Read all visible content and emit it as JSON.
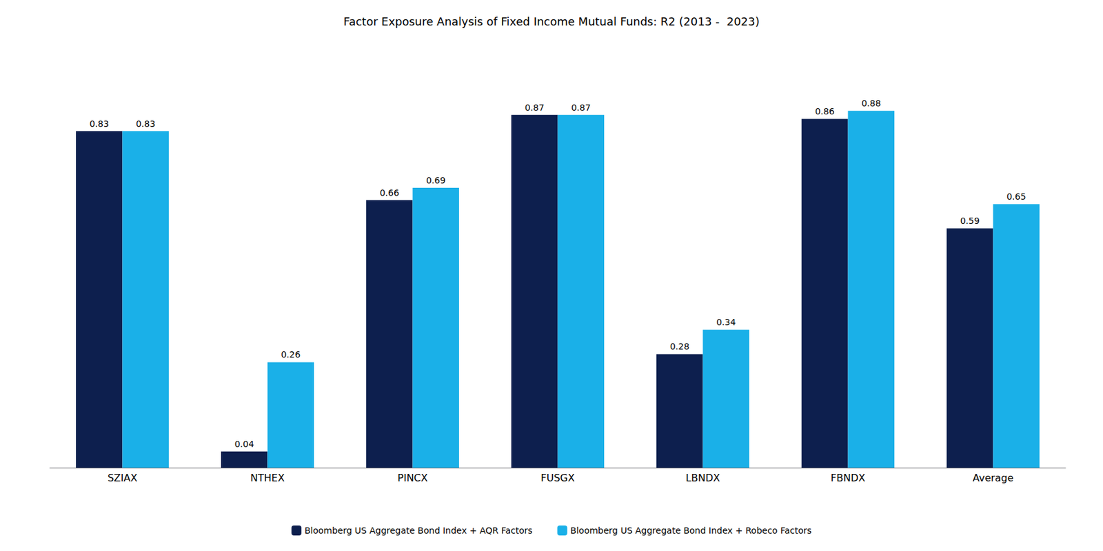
{
  "chart_data": {
    "type": "bar",
    "title": "Factor Exposure Analysis of Fixed Income Mutual Funds: R2 (2013 -  2023)",
    "categories": [
      "SZIAX",
      "NTHEX",
      "PINCX",
      "FUSGX",
      "LBNDX",
      "FBNDX",
      "Average"
    ],
    "series": [
      {
        "name": "Bloomberg US Aggregate Bond Index + AQR Factors",
        "color": "#0d1f4e",
        "values": [
          0.83,
          0.04,
          0.66,
          0.87,
          0.28,
          0.86,
          0.59
        ]
      },
      {
        "name": "Bloomberg US Aggregate Bond Index + Robeco Factors",
        "color": "#1ab0e8",
        "values": [
          0.83,
          0.26,
          0.69,
          0.87,
          0.34,
          0.88,
          0.65
        ]
      }
    ],
    "ylim": [
      0,
      1.0
    ],
    "data_labels": true,
    "tick_labels": "x",
    "grid": false,
    "legend": "bottom"
  }
}
